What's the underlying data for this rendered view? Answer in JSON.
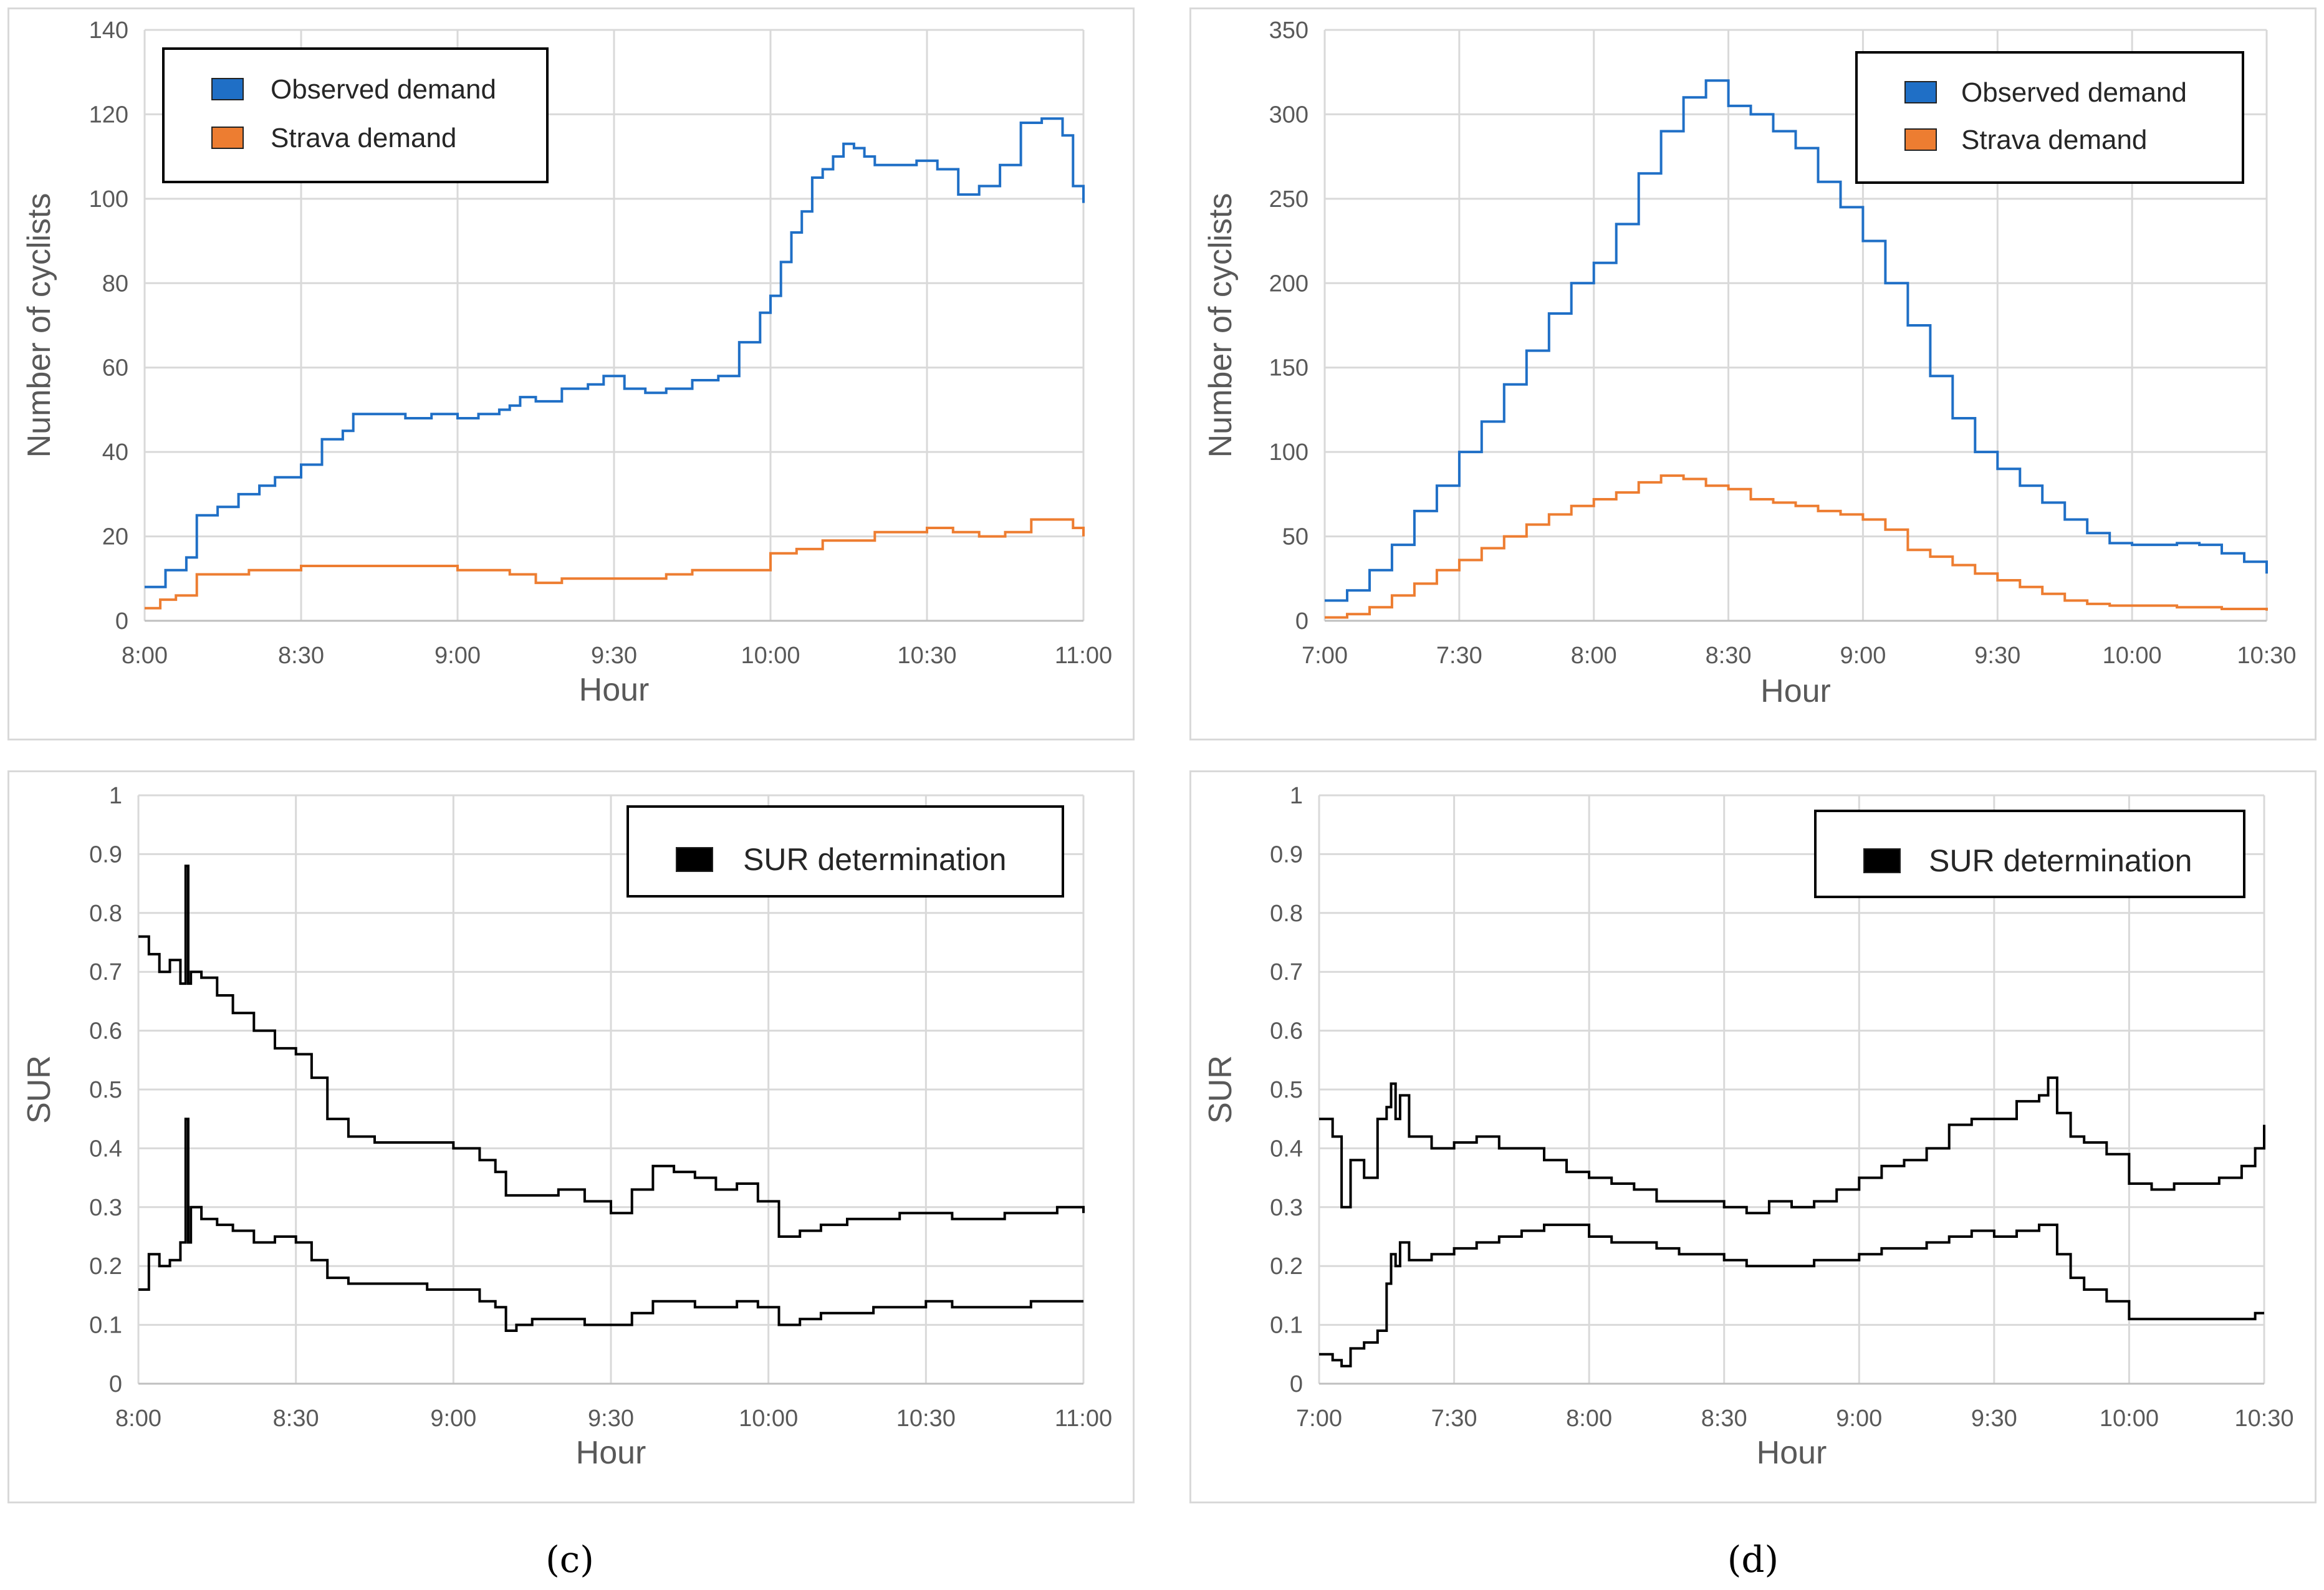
{
  "captions": {
    "c": "(c)",
    "d": "(d)"
  },
  "chart_data": [
    {
      "id": "top-left",
      "type": "line",
      "xlabel": "Hour",
      "ylabel": "Number of cyclists",
      "xlim": [
        0,
        180
      ],
      "ylim": [
        0,
        140
      ],
      "xticks": [
        {
          "v": 0,
          "label": "8:00"
        },
        {
          "v": 30,
          "label": "8:30"
        },
        {
          "v": 60,
          "label": "9:00"
        },
        {
          "v": 90,
          "label": "9:30"
        },
        {
          "v": 120,
          "label": "10:00"
        },
        {
          "v": 150,
          "label": "10:30"
        },
        {
          "v": 180,
          "label": "11:00"
        }
      ],
      "yticks": [
        0,
        20,
        40,
        60,
        80,
        100,
        120,
        140
      ],
      "legend": [
        {
          "name": "Observed demand",
          "color": "#1f6fc6"
        },
        {
          "name": "Strava demand",
          "color": "#ed7d31"
        }
      ],
      "series": [
        {
          "name": "Observed demand",
          "color": "#1f6fc6",
          "x": [
            0,
            4,
            8,
            10,
            14,
            18,
            22,
            25,
            30,
            34,
            38,
            40,
            45,
            50,
            55,
            60,
            64,
            68,
            70,
            72,
            75,
            80,
            85,
            88,
            92,
            96,
            100,
            105,
            110,
            114,
            118,
            120,
            122,
            124,
            126,
            128,
            130,
            132,
            134,
            136,
            138,
            140,
            144,
            148,
            152,
            156,
            160,
            164,
            168,
            172,
            176,
            178,
            180
          ],
          "y": [
            8,
            12,
            15,
            25,
            27,
            30,
            32,
            34,
            37,
            43,
            45,
            49,
            49,
            48,
            49,
            48,
            49,
            50,
            51,
            53,
            52,
            55,
            56,
            58,
            55,
            54,
            55,
            57,
            58,
            66,
            73,
            77,
            85,
            92,
            97,
            105,
            107,
            110,
            113,
            112,
            110,
            108,
            108,
            109,
            107,
            101,
            103,
            108,
            118,
            119,
            115,
            103,
            99
          ]
        },
        {
          "name": "Strava demand",
          "color": "#ed7d31",
          "x": [
            0,
            3,
            6,
            10,
            15,
            20,
            25,
            30,
            35,
            40,
            45,
            50,
            55,
            60,
            65,
            70,
            75,
            80,
            85,
            90,
            95,
            100,
            105,
            110,
            115,
            120,
            125,
            130,
            135,
            140,
            145,
            150,
            155,
            160,
            165,
            170,
            175,
            178,
            180
          ],
          "y": [
            3,
            5,
            6,
            11,
            11,
            12,
            12,
            13,
            13,
            13,
            13,
            13,
            13,
            12,
            12,
            11,
            9,
            10,
            10,
            10,
            10,
            11,
            12,
            12,
            12,
            16,
            17,
            19,
            19,
            21,
            21,
            22,
            21,
            20,
            21,
            24,
            24,
            22,
            20
          ]
        }
      ]
    },
    {
      "id": "top-right",
      "type": "line",
      "xlabel": "Hour",
      "ylabel": "Number of cyclists",
      "xlim": [
        0,
        210
      ],
      "ylim": [
        0,
        350
      ],
      "xticks": [
        {
          "v": 0,
          "label": "7:00"
        },
        {
          "v": 30,
          "label": "7:30"
        },
        {
          "v": 60,
          "label": "8:00"
        },
        {
          "v": 90,
          "label": "8:30"
        },
        {
          "v": 120,
          "label": "9:00"
        },
        {
          "v": 150,
          "label": "9:30"
        },
        {
          "v": 180,
          "label": "10:00"
        },
        {
          "v": 210,
          "label": "10:30"
        }
      ],
      "yticks": [
        0,
        50,
        100,
        150,
        200,
        250,
        300,
        350
      ],
      "legend": [
        {
          "name": "Observed demand",
          "color": "#1f6fc6"
        },
        {
          "name": "Strava demand",
          "color": "#ed7d31"
        }
      ],
      "series": [
        {
          "name": "Observed demand",
          "color": "#1f6fc6",
          "x": [
            0,
            5,
            10,
            15,
            20,
            25,
            30,
            35,
            40,
            45,
            50,
            55,
            60,
            65,
            70,
            75,
            80,
            85,
            90,
            95,
            100,
            105,
            110,
            115,
            120,
            125,
            130,
            135,
            140,
            145,
            150,
            155,
            160,
            165,
            170,
            175,
            180,
            185,
            190,
            195,
            200,
            205,
            210
          ],
          "y": [
            12,
            18,
            30,
            45,
            65,
            80,
            100,
            118,
            140,
            160,
            182,
            200,
            212,
            235,
            265,
            290,
            310,
            320,
            305,
            300,
            290,
            280,
            260,
            245,
            225,
            200,
            175,
            145,
            120,
            100,
            90,
            80,
            70,
            60,
            52,
            46,
            45,
            45,
            46,
            45,
            40,
            35,
            28
          ]
        },
        {
          "name": "Strava demand",
          "color": "#ed7d31",
          "x": [
            0,
            5,
            10,
            15,
            20,
            25,
            30,
            35,
            40,
            45,
            50,
            55,
            60,
            65,
            70,
            75,
            80,
            85,
            90,
            95,
            100,
            105,
            110,
            115,
            120,
            125,
            130,
            135,
            140,
            145,
            150,
            155,
            160,
            165,
            170,
            175,
            180,
            185,
            190,
            195,
            200,
            205,
            210
          ],
          "y": [
            2,
            4,
            8,
            15,
            22,
            30,
            36,
            43,
            50,
            57,
            63,
            68,
            72,
            76,
            82,
            86,
            84,
            80,
            78,
            72,
            70,
            68,
            65,
            63,
            60,
            54,
            42,
            38,
            33,
            28,
            24,
            20,
            16,
            12,
            10,
            9,
            9,
            9,
            8,
            8,
            7,
            7,
            6
          ]
        }
      ]
    },
    {
      "id": "bottom-left",
      "type": "line",
      "xlabel": "Hour",
      "ylabel": "SUR",
      "xlim": [
        0,
        180
      ],
      "ylim": [
        0,
        1
      ],
      "xticks": [
        {
          "v": 0,
          "label": "8:00"
        },
        {
          "v": 30,
          "label": "8:30"
        },
        {
          "v": 60,
          "label": "9:00"
        },
        {
          "v": 90,
          "label": "9:30"
        },
        {
          "v": 120,
          "label": "10:00"
        },
        {
          "v": 150,
          "label": "10:30"
        },
        {
          "v": 180,
          "label": "11:00"
        }
      ],
      "yticks": [
        {
          "v": 0,
          "label": "0"
        },
        {
          "v": 0.1,
          "label": "0.1"
        },
        {
          "v": 0.2,
          "label": "0.2"
        },
        {
          "v": 0.3,
          "label": "0.3"
        },
        {
          "v": 0.4,
          "label": "0.4"
        },
        {
          "v": 0.5,
          "label": "0.5"
        },
        {
          "v": 0.6,
          "label": "0.6"
        },
        {
          "v": 0.7,
          "label": "0.7"
        },
        {
          "v": 0.8,
          "label": "0.8"
        },
        {
          "v": 0.9,
          "label": "0.9"
        },
        {
          "v": 1,
          "label": "1"
        }
      ],
      "legend": [
        {
          "name": "SUR determination",
          "color": "#000000"
        }
      ],
      "series": [
        {
          "name": "SUR determination (upper)",
          "color": "#000000",
          "x": [
            0,
            2,
            4,
            6,
            8,
            9,
            9.5,
            10,
            12,
            15,
            18,
            22,
            26,
            30,
            33,
            36,
            40,
            45,
            50,
            55,
            60,
            65,
            68,
            70,
            72,
            75,
            80,
            85,
            90,
            94,
            98,
            102,
            106,
            110,
            114,
            118,
            122,
            126,
            130,
            135,
            140,
            145,
            150,
            155,
            160,
            165,
            170,
            175,
            180
          ],
          "y": [
            0.76,
            0.73,
            0.7,
            0.72,
            0.68,
            0.88,
            0.68,
            0.7,
            0.69,
            0.66,
            0.63,
            0.6,
            0.57,
            0.56,
            0.52,
            0.45,
            0.42,
            0.41,
            0.41,
            0.41,
            0.4,
            0.38,
            0.36,
            0.32,
            0.32,
            0.32,
            0.33,
            0.31,
            0.29,
            0.33,
            0.37,
            0.36,
            0.35,
            0.33,
            0.34,
            0.31,
            0.25,
            0.26,
            0.27,
            0.28,
            0.28,
            0.29,
            0.29,
            0.28,
            0.28,
            0.29,
            0.29,
            0.3,
            0.29
          ]
        },
        {
          "name": "SUR determination (lower)",
          "color": "#000000",
          "x": [
            0,
            2,
            4,
            6,
            8,
            9,
            9.5,
            10,
            12,
            15,
            18,
            22,
            26,
            30,
            33,
            36,
            40,
            45,
            50,
            55,
            60,
            65,
            68,
            70,
            72,
            75,
            80,
            85,
            90,
            94,
            98,
            102,
            106,
            110,
            114,
            118,
            122,
            126,
            130,
            135,
            140,
            145,
            150,
            155,
            160,
            165,
            170,
            175,
            180
          ],
          "y": [
            0.16,
            0.22,
            0.2,
            0.21,
            0.24,
            0.45,
            0.24,
            0.3,
            0.28,
            0.27,
            0.26,
            0.24,
            0.25,
            0.24,
            0.21,
            0.18,
            0.17,
            0.17,
            0.17,
            0.16,
            0.16,
            0.14,
            0.13,
            0.09,
            0.1,
            0.11,
            0.11,
            0.1,
            0.1,
            0.12,
            0.14,
            0.14,
            0.13,
            0.13,
            0.14,
            0.13,
            0.1,
            0.11,
            0.12,
            0.12,
            0.13,
            0.13,
            0.14,
            0.13,
            0.13,
            0.13,
            0.14,
            0.14,
            0.14
          ]
        }
      ]
    },
    {
      "id": "bottom-right",
      "type": "line",
      "xlabel": "Hour",
      "ylabel": "SUR",
      "xlim": [
        0,
        210
      ],
      "ylim": [
        0,
        1
      ],
      "xticks": [
        {
          "v": 0,
          "label": "7:00"
        },
        {
          "v": 30,
          "label": "7:30"
        },
        {
          "v": 60,
          "label": "8:00"
        },
        {
          "v": 90,
          "label": "8:30"
        },
        {
          "v": 120,
          "label": "9:00"
        },
        {
          "v": 150,
          "label": "9:30"
        },
        {
          "v": 180,
          "label": "10:00"
        },
        {
          "v": 210,
          "label": "10:30"
        }
      ],
      "yticks": [
        {
          "v": 0,
          "label": "0"
        },
        {
          "v": 0.1,
          "label": "0.1"
        },
        {
          "v": 0.2,
          "label": "0.2"
        },
        {
          "v": 0.3,
          "label": "0.3"
        },
        {
          "v": 0.4,
          "label": "0.4"
        },
        {
          "v": 0.5,
          "label": "0.5"
        },
        {
          "v": 0.6,
          "label": "0.6"
        },
        {
          "v": 0.7,
          "label": "0.7"
        },
        {
          "v": 0.8,
          "label": "0.8"
        },
        {
          "v": 0.9,
          "label": "0.9"
        },
        {
          "v": 1,
          "label": "1"
        }
      ],
      "legend": [
        {
          "name": "SUR determination",
          "color": "#000000"
        }
      ],
      "series": [
        {
          "name": "SUR determination (upper)",
          "color": "#000000",
          "x": [
            0,
            3,
            5,
            7,
            10,
            13,
            15,
            16,
            17,
            18,
            20,
            25,
            30,
            35,
            40,
            45,
            50,
            55,
            60,
            65,
            70,
            75,
            80,
            85,
            90,
            95,
            100,
            105,
            110,
            115,
            120,
            125,
            130,
            135,
            140,
            145,
            150,
            155,
            160,
            162,
            164,
            167,
            170,
            175,
            180,
            185,
            190,
            195,
            200,
            205,
            208,
            210
          ],
          "y": [
            0.45,
            0.42,
            0.3,
            0.38,
            0.35,
            0.45,
            0.47,
            0.51,
            0.45,
            0.49,
            0.42,
            0.4,
            0.41,
            0.42,
            0.4,
            0.4,
            0.38,
            0.36,
            0.35,
            0.34,
            0.33,
            0.31,
            0.31,
            0.31,
            0.3,
            0.29,
            0.31,
            0.3,
            0.31,
            0.33,
            0.35,
            0.37,
            0.38,
            0.4,
            0.44,
            0.45,
            0.45,
            0.48,
            0.49,
            0.52,
            0.46,
            0.42,
            0.41,
            0.39,
            0.34,
            0.33,
            0.34,
            0.34,
            0.35,
            0.37,
            0.4,
            0.44
          ]
        },
        {
          "name": "SUR determination (lower)",
          "color": "#000000",
          "x": [
            0,
            3,
            5,
            7,
            10,
            13,
            15,
            16,
            17,
            18,
            20,
            25,
            30,
            35,
            40,
            45,
            50,
            55,
            60,
            65,
            70,
            75,
            80,
            85,
            90,
            95,
            100,
            105,
            110,
            115,
            120,
            125,
            130,
            135,
            140,
            145,
            150,
            155,
            160,
            162,
            164,
            167,
            170,
            175,
            180,
            185,
            190,
            195,
            200,
            205,
            208,
            210
          ],
          "y": [
            0.05,
            0.04,
            0.03,
            0.06,
            0.07,
            0.09,
            0.17,
            0.22,
            0.2,
            0.24,
            0.21,
            0.22,
            0.23,
            0.24,
            0.25,
            0.26,
            0.27,
            0.27,
            0.25,
            0.24,
            0.24,
            0.23,
            0.22,
            0.22,
            0.21,
            0.2,
            0.2,
            0.2,
            0.21,
            0.21,
            0.22,
            0.23,
            0.23,
            0.24,
            0.25,
            0.26,
            0.25,
            0.26,
            0.27,
            0.27,
            0.22,
            0.18,
            0.16,
            0.14,
            0.11,
            0.11,
            0.11,
            0.11,
            0.11,
            0.11,
            0.12,
            0.12
          ]
        }
      ]
    }
  ]
}
